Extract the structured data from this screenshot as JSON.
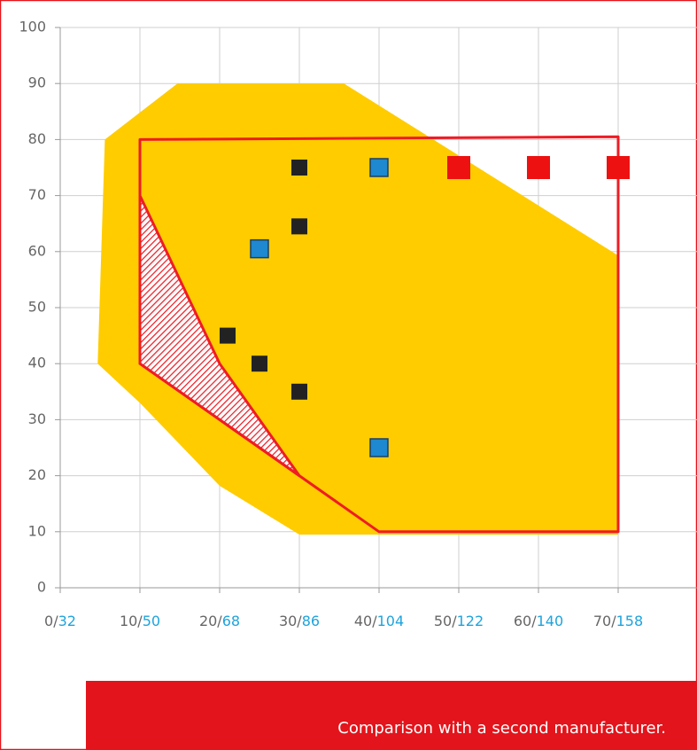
{
  "chart_data": {
    "type": "scatter",
    "xlim": [
      0,
      80
    ],
    "ylim": [
      0,
      100
    ],
    "xticks": [
      {
        "value": 0,
        "label": "0/32"
      },
      {
        "value": 10,
        "label": "10/50"
      },
      {
        "value": 20,
        "label": "20/68"
      },
      {
        "value": 30,
        "label": "30/86"
      },
      {
        "value": 40,
        "label": "40/104"
      },
      {
        "value": 50,
        "label": "50/122"
      },
      {
        "value": 60,
        "label": "60/140"
      },
      {
        "value": 70,
        "label": "70/158"
      }
    ],
    "yticks": [
      0,
      10,
      20,
      30,
      40,
      50,
      60,
      70,
      80,
      90,
      100
    ],
    "grid": true,
    "regions": [
      {
        "style": "fill",
        "color": "#ffcc00",
        "x": [
          5.6,
          14.7,
          35.6,
          70,
          70,
          30,
          20,
          10,
          4.7
        ],
        "values": [
          80,
          90,
          90,
          59.3,
          9.5,
          9.5,
          18.2,
          33,
          40
        ]
      },
      {
        "style": "hatch",
        "color": "#ee1c25",
        "x": [
          10,
          20,
          30,
          10
        ],
        "values": [
          70,
          40,
          20,
          40
        ]
      },
      {
        "style": "outline",
        "color": "#ee1c25",
        "x": [
          10,
          70,
          70,
          40,
          30,
          10
        ],
        "values": [
          80,
          80.5,
          10,
          10,
          20,
          40
        ]
      }
    ],
    "series": [
      {
        "color": "#222222",
        "x": [
          30,
          30,
          21,
          25,
          30
        ],
        "values": [
          75,
          64.5,
          45,
          40,
          35
        ]
      },
      {
        "color": "#1e88d0",
        "x": [
          40,
          25,
          40
        ],
        "values": [
          75,
          60.5,
          25
        ]
      },
      {
        "color": "#ee1111",
        "x": [
          50,
          60,
          70
        ],
        "values": [
          75,
          75,
          75
        ]
      }
    ]
  },
  "caption": "Comparison with a second manufacturer."
}
